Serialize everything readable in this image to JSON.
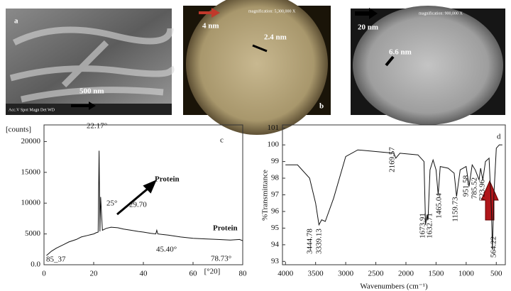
{
  "images": [
    {
      "label": "a",
      "scale": "500 nm",
      "info": "Acc.V Spot Magn Det WD"
    },
    {
      "label": "b",
      "scale": "4 nm",
      "measure": "2.4 nm",
      "info": "magnification: 5,300,000 X"
    },
    {
      "scale": "20 nm",
      "measure": "6.6 nm",
      "info": "magnification: 900,000 X"
    }
  ],
  "chart_data": [
    {
      "type": "line",
      "ylabel": "[counts]",
      "xlabel": "[°20]",
      "x": [
        1,
        3,
        5,
        8,
        10,
        13,
        15,
        18,
        20,
        21,
        21.8,
        22.17,
        22.5,
        22.8,
        23.5,
        25,
        27,
        29.7,
        32,
        35,
        38,
        40,
        43,
        45,
        45.4,
        45.8,
        48,
        50,
        55,
        60,
        65,
        70,
        75,
        78.73,
        80
      ],
      "series": [
        {
          "color": "#111111",
          "values": [
            1500,
            2200,
            2700,
            3300,
            3700,
            4100,
            4500,
            4800,
            5000,
            5200,
            5300,
            18500,
            5400,
            11000,
            5600,
            5900,
            6100,
            6000,
            5800,
            5600,
            5400,
            5300,
            5100,
            5000,
            5600,
            5000,
            4900,
            4800,
            4500,
            4300,
            4200,
            4100,
            4000,
            4100,
            3900
          ]
        }
      ],
      "xlim": [
        0,
        80
      ],
      "xticks": [
        0,
        20,
        40,
        60,
        80
      ],
      "ylim": [
        0,
        22700
      ],
      "yticks": [
        {
          "value": 0,
          "label": "0.0"
        },
        5000,
        10000,
        15000,
        20000
      ],
      "annotations": [
        "c",
        "22.17°",
        "25°",
        "29.70",
        "Protein",
        "Protein",
        "45.40°",
        "78.73°",
        "85_37"
      ]
    },
    {
      "type": "line",
      "ylabel": "%Transmittance",
      "xlabel": "Wavenumbers (cm⁻¹)",
      "x": [
        4000,
        3800,
        3600,
        3500,
        3444.78,
        3400,
        3339.13,
        3200,
        3000,
        2800,
        2500,
        2200,
        2169.57,
        2100,
        1800,
        1700,
        1673.91,
        1650,
        1632.71,
        1600,
        1550,
        1500,
        1465.04,
        1430,
        1300,
        1200,
        1159.73,
        1100,
        1000,
        951.58,
        900,
        850,
        785.52,
        760,
        723.96,
        680,
        620,
        580,
        564.22,
        540,
        500,
        450,
        400
      ],
      "series": [
        {
          "color": "#111111",
          "values": [
            98.8,
            98.8,
            98,
            96.5,
            95.2,
            95.5,
            95.4,
            96.8,
            99.3,
            99.7,
            99.6,
            99.5,
            99.2,
            99.5,
            99.4,
            99,
            95.2,
            95.8,
            95.5,
            98.5,
            99.1,
            98.5,
            97,
            98.7,
            98.6,
            98.3,
            96.9,
            98.5,
            98.7,
            97.5,
            98.8,
            98.5,
            97.9,
            98.6,
            97.9,
            99,
            99.2,
            96,
            93.7,
            97,
            99.8,
            100,
            100
          ]
        }
      ],
      "xlim": [
        4050,
        350
      ],
      "xticks": [
        4000,
        3500,
        3000,
        2500,
        2000,
        1500,
        1000,
        500
      ],
      "ylim": [
        92.8,
        101.2
      ],
      "yticks": [
        93,
        94,
        95,
        96,
        97,
        98,
        99,
        100,
        101
      ],
      "annotations": [
        "d",
        "3444.78",
        "3339.13",
        "2169.57",
        "1673.91",
        "1632.71",
        "1465.04",
        "1159.73",
        "951.58",
        "785.52",
        "723.96",
        "564.22"
      ]
    }
  ]
}
